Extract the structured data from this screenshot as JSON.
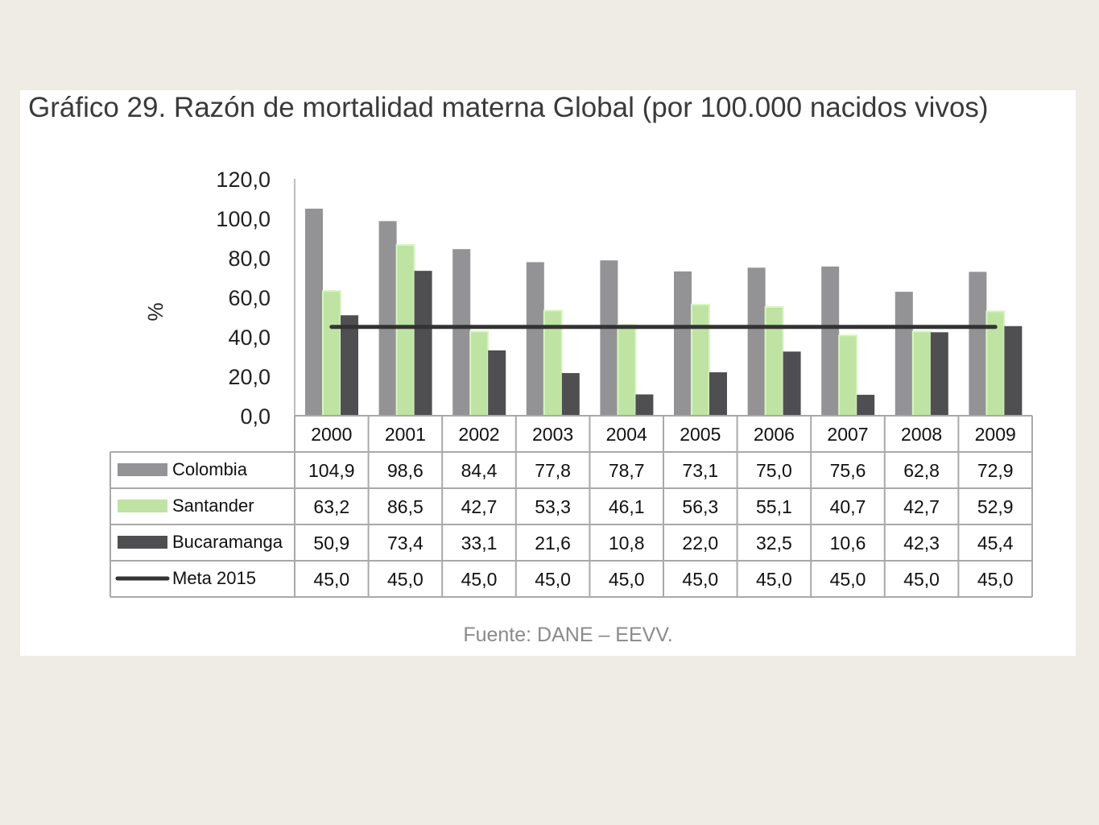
{
  "title": "Gráfico 29. Razón de mortalidad materna Global (por 100.000 nacidos vivos)",
  "source": "Fuente: DANE – EEVV.",
  "chart_data": {
    "type": "bar",
    "title": "Gráfico 29. Razón de mortalidad materna Global (por 100.000 nacidos vivos)",
    "xlabel": "",
    "ylabel": "%",
    "ylim": [
      0,
      120
    ],
    "yticks": [
      "0,0",
      "20,0",
      "40,0",
      "60,0",
      "80,0",
      "100,0",
      "120,0"
    ],
    "categories": [
      "2000",
      "2001",
      "2002",
      "2003",
      "2004",
      "2005",
      "2006",
      "2007",
      "2008",
      "2009"
    ],
    "series": [
      {
        "name": "Colombia",
        "type": "bar",
        "color": "#939396",
        "values": [
          104.9,
          98.6,
          84.4,
          77.8,
          78.7,
          73.1,
          75.0,
          75.6,
          62.8,
          72.9
        ],
        "labels": [
          "104,9",
          "98,6",
          "84,4",
          "77,8",
          "78,7",
          "73,1",
          "75,0",
          "75,6",
          "62,8",
          "72,9"
        ]
      },
      {
        "name": "Santander",
        "type": "bar",
        "color": "#bfe3a3",
        "values": [
          63.2,
          86.5,
          42.7,
          53.3,
          46.1,
          56.3,
          55.1,
          40.7,
          42.7,
          52.9
        ],
        "labels": [
          "63,2",
          "86,5",
          "42,7",
          "53,3",
          "46,1",
          "56,3",
          "55,1",
          "40,7",
          "42,7",
          "52,9"
        ]
      },
      {
        "name": "Bucaramanga",
        "type": "bar",
        "color": "#4f4f52",
        "values": [
          50.9,
          73.4,
          33.1,
          21.6,
          10.8,
          22.0,
          32.5,
          10.6,
          42.3,
          45.4
        ],
        "labels": [
          "50,9",
          "73,4",
          "33,1",
          "21,6",
          "10,8",
          "22,0",
          "32,5",
          "10,6",
          "42,3",
          "45,4"
        ]
      },
      {
        "name": "Meta 2015",
        "type": "line",
        "color": "#333333",
        "values": [
          45.0,
          45.0,
          45.0,
          45.0,
          45.0,
          45.0,
          45.0,
          45.0,
          45.0,
          45.0
        ],
        "labels": [
          "45,0",
          "45,0",
          "45,0",
          "45,0",
          "45,0",
          "45,0",
          "45,0",
          "45,0",
          "45,0",
          "45,0"
        ]
      }
    ],
    "legend": "data-table",
    "grid": false
  }
}
